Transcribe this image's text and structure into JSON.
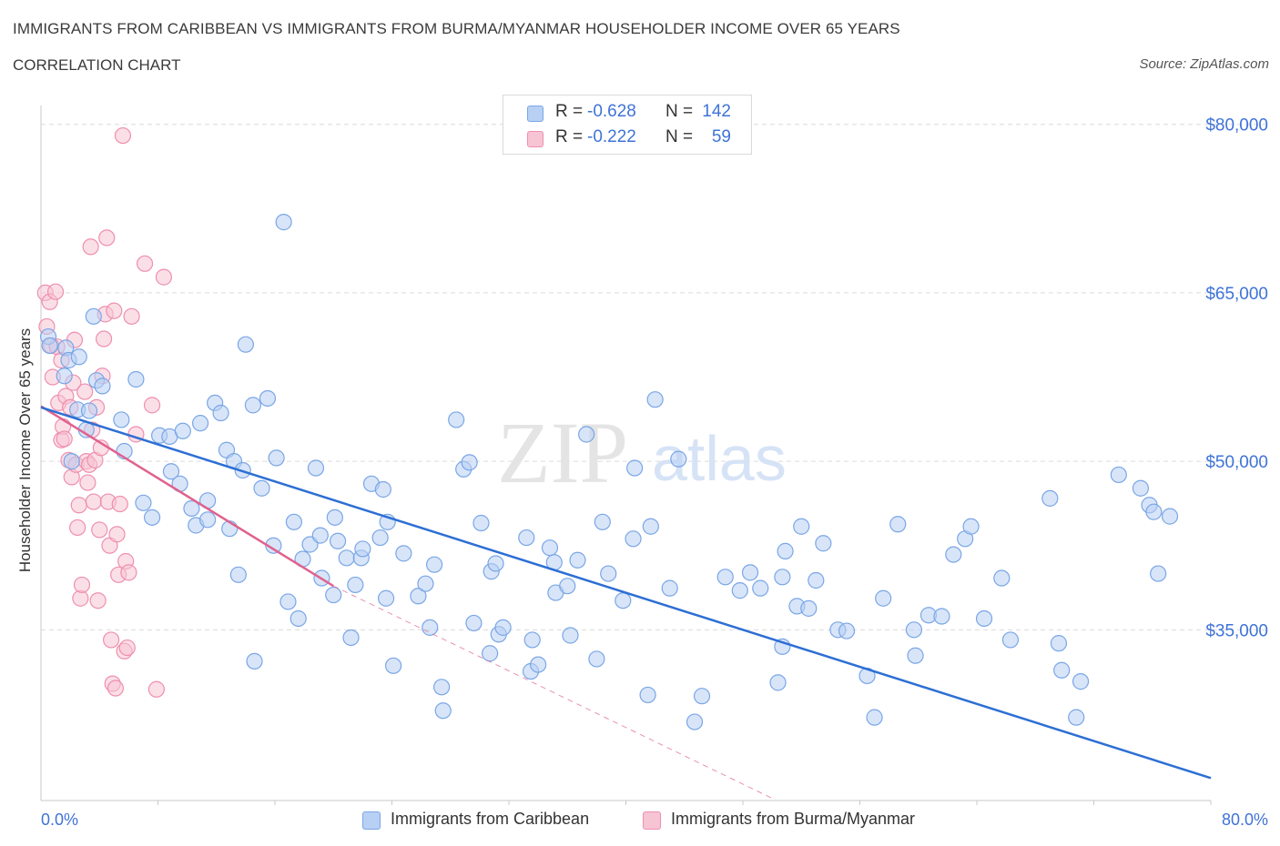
{
  "header": {
    "title": "IMMIGRANTS FROM CARIBBEAN VS IMMIGRANTS FROM BURMA/MYANMAR HOUSEHOLDER INCOME OVER 65 YEARS",
    "subtitle": "CORRELATION CHART",
    "source": "Source: ZipAtlas.com"
  },
  "colors": {
    "blue_fill": "#b8d0f4",
    "blue_stroke": "#7aa6e6",
    "blue_line": "#2d6fd4",
    "pink_fill": "#f7c4d4",
    "pink_stroke": "#ee8fb0",
    "pink_line": "#e0628f",
    "axis_label": "#3f73d8",
    "grid": "#dcdcdc"
  },
  "legend_top": [
    {
      "r_label": "R =",
      "r_value": "-0.628",
      "n_label": "N =",
      "n_value": "142"
    },
    {
      "r_label": "R =",
      "r_value": "-0.222",
      "n_label": "N =",
      "n_value": "59"
    }
  ],
  "watermark": {
    "zip": "ZIP",
    "atlas": "atlas"
  },
  "chart_data": {
    "type": "scatter",
    "title": "IMMIGRANTS FROM CARIBBEAN VS IMMIGRANTS FROM BURMA/MYANMAR HOUSEHOLDER INCOME OVER 65 YEARS",
    "xlabel": "",
    "ylabel": "Householder Income Over 65 years",
    "xlim": [
      0,
      80
    ],
    "ylim": [
      19800,
      82000
    ],
    "x_tick_labels": [
      "0.0%",
      "80.0%"
    ],
    "y_ticks": [
      35000,
      50000,
      65000,
      80000
    ],
    "y_tick_labels": [
      "$35,000",
      "$50,000",
      "$65,000",
      "$80,000"
    ],
    "grid": true,
    "series": [
      {
        "name": "Immigrants from Caribbean",
        "color": "blue",
        "points": [
          [
            0.5,
            61.1
          ],
          [
            0.6,
            60.3
          ],
          [
            1.7,
            60.1
          ],
          [
            1.6,
            57.6
          ],
          [
            1.9,
            59.0
          ],
          [
            2.1,
            50.0
          ],
          [
            2.5,
            54.6
          ],
          [
            2.6,
            59.3
          ],
          [
            3.1,
            52.8
          ],
          [
            3.3,
            54.5
          ],
          [
            3.6,
            62.9
          ],
          [
            3.8,
            57.2
          ],
          [
            4.2,
            56.7
          ],
          [
            5.5,
            53.7
          ],
          [
            5.7,
            50.9
          ],
          [
            6.5,
            57.3
          ],
          [
            7.0,
            46.3
          ],
          [
            7.6,
            45.0
          ],
          [
            8.1,
            52.3
          ],
          [
            8.8,
            52.2
          ],
          [
            8.9,
            49.1
          ],
          [
            9.5,
            48.0
          ],
          [
            9.7,
            52.7
          ],
          [
            10.3,
            45.8
          ],
          [
            10.6,
            44.3
          ],
          [
            10.9,
            53.4
          ],
          [
            11.4,
            46.5
          ],
          [
            11.4,
            44.8
          ],
          [
            11.9,
            55.2
          ],
          [
            12.3,
            54.3
          ],
          [
            12.9,
            44.0
          ],
          [
            12.7,
            51.0
          ],
          [
            13.2,
            50.0
          ],
          [
            13.5,
            39.9
          ],
          [
            13.8,
            49.2
          ],
          [
            14.0,
            60.4
          ],
          [
            14.5,
            55.0
          ],
          [
            14.6,
            32.2
          ],
          [
            15.1,
            47.6
          ],
          [
            15.5,
            55.6
          ],
          [
            15.9,
            42.5
          ],
          [
            16.1,
            50.3
          ],
          [
            16.6,
            71.3
          ],
          [
            16.9,
            37.5
          ],
          [
            17.3,
            44.6
          ],
          [
            17.6,
            36.0
          ],
          [
            17.9,
            41.3
          ],
          [
            18.4,
            42.6
          ],
          [
            18.8,
            49.4
          ],
          [
            19.1,
            43.4
          ],
          [
            19.2,
            39.6
          ],
          [
            20.0,
            38.1
          ],
          [
            20.1,
            45.0
          ],
          [
            20.3,
            42.9
          ],
          [
            20.9,
            41.4
          ],
          [
            21.2,
            34.3
          ],
          [
            21.5,
            39.0
          ],
          [
            21.9,
            41.4
          ],
          [
            22.0,
            42.2
          ],
          [
            22.6,
            48.0
          ],
          [
            23.2,
            43.2
          ],
          [
            23.4,
            47.5
          ],
          [
            23.7,
            44.6
          ],
          [
            23.6,
            37.8
          ],
          [
            24.1,
            31.8
          ],
          [
            24.8,
            41.8
          ],
          [
            25.8,
            38.0
          ],
          [
            26.3,
            39.1
          ],
          [
            26.6,
            35.2
          ],
          [
            26.9,
            40.8
          ],
          [
            27.4,
            29.9
          ],
          [
            27.5,
            27.8
          ],
          [
            28.4,
            53.7
          ],
          [
            28.9,
            49.3
          ],
          [
            29.3,
            49.9
          ],
          [
            29.6,
            35.6
          ],
          [
            30.1,
            44.5
          ],
          [
            30.8,
            40.2
          ],
          [
            30.7,
            32.9
          ],
          [
            31.3,
            34.6
          ],
          [
            31.1,
            40.9
          ],
          [
            31.6,
            35.2
          ],
          [
            33.2,
            43.2
          ],
          [
            33.5,
            31.3
          ],
          [
            33.6,
            34.1
          ],
          [
            34.0,
            31.9
          ],
          [
            34.8,
            42.3
          ],
          [
            35.1,
            41.0
          ],
          [
            35.2,
            38.3
          ],
          [
            36.0,
            38.9
          ],
          [
            36.2,
            34.5
          ],
          [
            36.7,
            41.2
          ],
          [
            37.3,
            52.4
          ],
          [
            38.0,
            32.4
          ],
          [
            38.4,
            44.6
          ],
          [
            38.8,
            40.0
          ],
          [
            39.8,
            37.6
          ],
          [
            40.5,
            43.1
          ],
          [
            40.6,
            49.4
          ],
          [
            41.5,
            29.2
          ],
          [
            41.7,
            44.2
          ],
          [
            42.0,
            55.5
          ],
          [
            43.0,
            38.7
          ],
          [
            43.6,
            50.2
          ],
          [
            44.7,
            26.8
          ],
          [
            45.2,
            29.1
          ],
          [
            46.8,
            39.7
          ],
          [
            47.8,
            38.5
          ],
          [
            48.5,
            40.1
          ],
          [
            49.2,
            38.7
          ],
          [
            50.4,
            30.3
          ],
          [
            50.7,
            33.5
          ],
          [
            50.9,
            42.0
          ],
          [
            50.7,
            39.7
          ],
          [
            51.7,
            37.1
          ],
          [
            52.0,
            44.2
          ],
          [
            52.5,
            36.9
          ],
          [
            53.0,
            39.4
          ],
          [
            53.5,
            42.7
          ],
          [
            54.5,
            35.0
          ],
          [
            55.1,
            34.9
          ],
          [
            56.5,
            30.9
          ],
          [
            57.0,
            27.2
          ],
          [
            57.6,
            37.8
          ],
          [
            58.6,
            44.4
          ],
          [
            59.7,
            35.0
          ],
          [
            59.8,
            32.7
          ],
          [
            60.7,
            36.3
          ],
          [
            61.6,
            36.2
          ],
          [
            62.4,
            41.7
          ],
          [
            63.2,
            43.1
          ],
          [
            63.6,
            44.2
          ],
          [
            64.5,
            36.0
          ],
          [
            65.7,
            39.6
          ],
          [
            66.3,
            34.1
          ],
          [
            69.0,
            46.7
          ],
          [
            69.6,
            33.8
          ],
          [
            69.8,
            31.4
          ],
          [
            70.8,
            27.2
          ],
          [
            71.1,
            30.4
          ],
          [
            73.7,
            48.8
          ],
          [
            75.2,
            47.6
          ],
          [
            75.8,
            46.1
          ],
          [
            76.1,
            45.5
          ],
          [
            76.4,
            40.0
          ],
          [
            77.2,
            45.1
          ]
        ],
        "pts_note": "x in %, y in $K",
        "trend": {
          "x": [
            0,
            80
          ],
          "y": [
            54.8,
            21.8
          ]
        }
      },
      {
        "name": "Immigrants from Burma/Myanmar",
        "color": "pink",
        "points": [
          [
            0.3,
            65.0
          ],
          [
            0.4,
            62.0
          ],
          [
            0.6,
            64.2
          ],
          [
            0.7,
            60.3
          ],
          [
            0.8,
            57.5
          ],
          [
            1.0,
            65.1
          ],
          [
            1.1,
            60.2
          ],
          [
            1.2,
            55.2
          ],
          [
            1.4,
            59.0
          ],
          [
            1.4,
            51.9
          ],
          [
            1.5,
            53.1
          ],
          [
            1.6,
            52.0
          ],
          [
            1.7,
            55.8
          ],
          [
            1.9,
            50.1
          ],
          [
            2.0,
            54.8
          ],
          [
            2.1,
            48.6
          ],
          [
            2.2,
            57.0
          ],
          [
            2.3,
            60.8
          ],
          [
            2.4,
            49.7
          ],
          [
            2.5,
            44.1
          ],
          [
            2.6,
            46.1
          ],
          [
            2.7,
            37.8
          ],
          [
            2.8,
            39.0
          ],
          [
            3.0,
            56.2
          ],
          [
            3.1,
            50.0
          ],
          [
            3.2,
            48.1
          ],
          [
            3.3,
            49.7
          ],
          [
            3.4,
            69.1
          ],
          [
            3.5,
            52.8
          ],
          [
            3.6,
            46.4
          ],
          [
            3.7,
            50.1
          ],
          [
            3.8,
            54.8
          ],
          [
            3.9,
            37.6
          ],
          [
            4.0,
            43.9
          ],
          [
            4.1,
            51.2
          ],
          [
            4.2,
            57.6
          ],
          [
            4.3,
            60.9
          ],
          [
            4.4,
            63.1
          ],
          [
            4.5,
            69.9
          ],
          [
            4.6,
            46.4
          ],
          [
            4.7,
            42.5
          ],
          [
            4.8,
            34.1
          ],
          [
            4.9,
            30.2
          ],
          [
            5.0,
            63.4
          ],
          [
            5.1,
            29.8
          ],
          [
            5.2,
            43.5
          ],
          [
            5.3,
            39.9
          ],
          [
            5.4,
            46.2
          ],
          [
            5.6,
            79.0
          ],
          [
            5.7,
            33.1
          ],
          [
            5.8,
            41.1
          ],
          [
            5.9,
            33.4
          ],
          [
            6.0,
            40.1
          ],
          [
            6.2,
            62.9
          ],
          [
            6.5,
            52.4
          ],
          [
            7.1,
            67.6
          ],
          [
            7.9,
            29.7
          ],
          [
            8.4,
            66.4
          ],
          [
            7.6,
            55.0
          ]
        ],
        "trend": {
          "x": [
            0,
            20
          ],
          "y": [
            54.9,
            38.9
          ]
        },
        "trend_extension": {
          "x": [
            20,
            50
          ],
          "y": [
            38.9,
            20.0
          ]
        }
      }
    ],
    "legend": [
      "Immigrants from Caribbean",
      "Immigrants from Burma/Myanmar"
    ],
    "legend_position": "bottom-center",
    "stats_box_position": "top-center"
  },
  "bottom_legend": [
    {
      "label": "Immigrants from Caribbean"
    },
    {
      "label": "Immigrants from Burma/Myanmar"
    }
  ]
}
